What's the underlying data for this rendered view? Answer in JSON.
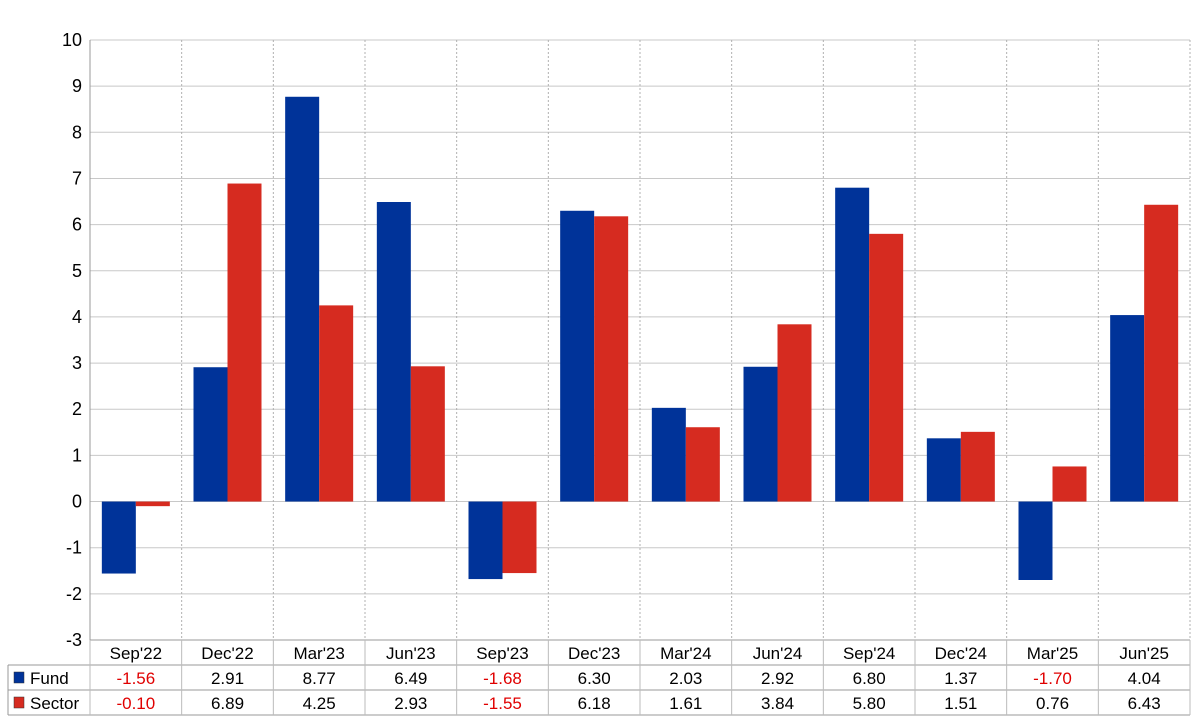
{
  "chart_data": {
    "type": "bar",
    "categories": [
      "Sep'22",
      "Dec'22",
      "Mar'23",
      "Jun'23",
      "Sep'23",
      "Dec'23",
      "Mar'24",
      "Jun'24",
      "Sep'24",
      "Dec'24",
      "Mar'25",
      "Jun'25"
    ],
    "series": [
      {
        "name": "Fund",
        "color": "#003399",
        "values": [
          -1.56,
          2.91,
          8.77,
          6.49,
          -1.68,
          6.3,
          2.03,
          2.92,
          6.8,
          1.37,
          -1.7,
          4.04
        ],
        "labels": [
          "-1.56",
          "2.91",
          "8.77",
          "6.49",
          "-1.68",
          "6.30",
          "2.03",
          "2.92",
          "6.80",
          "1.37",
          "-1.70",
          "4.04"
        ]
      },
      {
        "name": "Sector",
        "color": "#d62b20",
        "values": [
          -0.1,
          6.89,
          4.25,
          2.93,
          -1.55,
          6.18,
          1.61,
          3.84,
          5.8,
          1.51,
          0.76,
          6.43
        ],
        "labels": [
          "-0.10",
          "6.89",
          "4.25",
          "2.93",
          "-1.55",
          "6.18",
          "1.61",
          "3.84",
          "5.80",
          "1.51",
          "0.76",
          "6.43"
        ]
      }
    ],
    "ylim": [
      -3,
      10
    ],
    "yticks": [
      "-3",
      "-2",
      "-1",
      "0",
      "1",
      "2",
      "3",
      "4",
      "5",
      "6",
      "7",
      "8",
      "9",
      "10"
    ],
    "negative_color": "#e00000",
    "grid": true,
    "legend": "data-table-bottom"
  }
}
